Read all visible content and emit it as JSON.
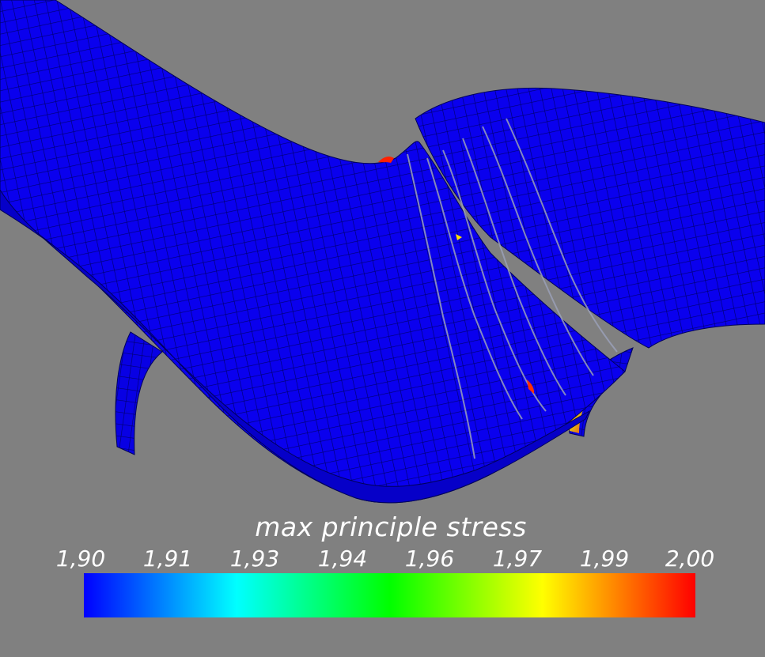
{
  "legend": {
    "title": "max principle stress",
    "ticks": [
      "1,90",
      "1,91",
      "1,93",
      "1,94",
      "1,96",
      "1,97",
      "1,99",
      "2,00"
    ],
    "colormap": [
      "#0000ff",
      "#00ffff",
      "#00ff00",
      "#ffff00",
      "#ff0000"
    ]
  },
  "colors": {
    "background": "#808080",
    "mesh": "#0a00ee",
    "mesh_lines": "#00006e",
    "hotspot": "#ff2000"
  }
}
